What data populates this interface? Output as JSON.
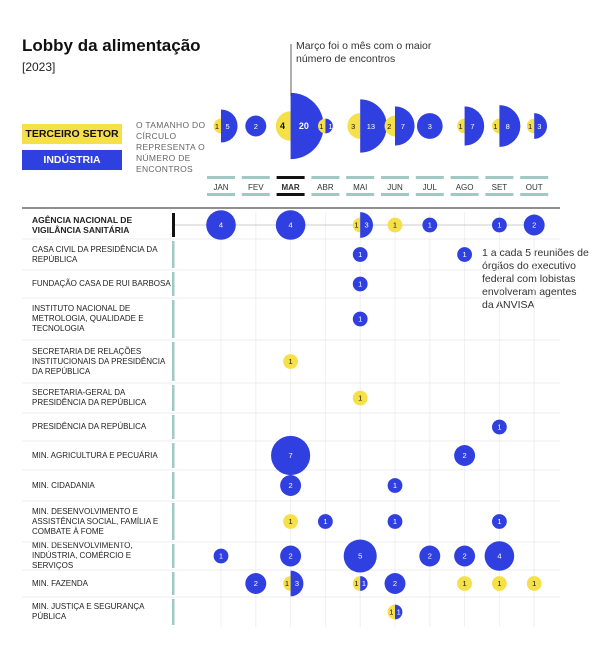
{
  "header": {
    "title": "Lobby da alimentação",
    "subtitle": "[2023]",
    "march_note": "Março foi o mês com o maior número de encontros",
    "anvisa_note": "1 a cada 5 reuniões de órgãos do executivo federal com lobistas envolveram agentes da ANVISA"
  },
  "legend": {
    "terceiro_setor": "TERCEIRO SETOR",
    "industria": "INDÚSTRIA",
    "size_note": "O TAMANHO DO CÍRCULO REPRESENTA O NÚMERO DE ENCONTROS"
  },
  "colors": {
    "industria": "#2f3fe0",
    "terceiro": "#f5e04a",
    "highlight_line": "#111111",
    "row_line": "#9fc9c2"
  },
  "chart_data": {
    "type": "bubble-matrix",
    "title": "Lobby da alimentação",
    "subtitle": "[2023]",
    "months": [
      "JAN",
      "FEV",
      "MAR",
      "ABR",
      "MAI",
      "JUN",
      "JUL",
      "AGO",
      "SET",
      "OUT"
    ],
    "highlight_month": "MAR",
    "series": [
      {
        "name": "TERCEIRO SETOR"
      },
      {
        "name": "INDÚSTRIA"
      }
    ],
    "monthly_totals": [
      {
        "month": "JAN",
        "terceiro": 1,
        "industria": 5
      },
      {
        "month": "FEV",
        "terceiro": 0,
        "industria": 2
      },
      {
        "month": "MAR",
        "terceiro": 4,
        "industria": 20
      },
      {
        "month": "ABR",
        "terceiro": 1,
        "industria": 1
      },
      {
        "month": "MAI",
        "terceiro": 3,
        "industria": 13
      },
      {
        "month": "JUN",
        "terceiro": 2,
        "industria": 7
      },
      {
        "month": "JUL",
        "terceiro": 0,
        "industria": 3
      },
      {
        "month": "AGO",
        "terceiro": 1,
        "industria": 7
      },
      {
        "month": "SET",
        "terceiro": 1,
        "industria": 8
      },
      {
        "month": "OUT",
        "terceiro": 1,
        "industria": 3
      }
    ],
    "organs": [
      {
        "name": "AGÊNCIA NACIONAL DE VIGILÂNCIA SANITÁRIA",
        "highlight": true,
        "cells": [
          {
            "month": "JAN",
            "industria": 4
          },
          {
            "month": "MAR",
            "industria": 4
          },
          {
            "month": "MAI",
            "terceiro": 1,
            "industria": 3
          },
          {
            "month": "JUN",
            "terceiro": 1
          },
          {
            "month": "JUL",
            "industria": 1
          },
          {
            "month": "SET",
            "industria": 1
          },
          {
            "month": "OUT",
            "industria": 2
          }
        ]
      },
      {
        "name": "CASA CIVIL DA PRESIDÊNCIA DA REPÚBLICA",
        "cells": [
          {
            "month": "MAI",
            "industria": 1
          },
          {
            "month": "AGO",
            "industria": 1
          }
        ]
      },
      {
        "name": "FUNDAÇÃO CASA DE RUI BARBOSA",
        "cells": [
          {
            "month": "MAI",
            "industria": 1
          }
        ]
      },
      {
        "name": "INSTITUTO NACIONAL DE METROLOGIA, QUALIDADE E TECNOLOGIA",
        "cells": [
          {
            "month": "MAI",
            "industria": 1
          }
        ]
      },
      {
        "name": "SECRETARIA DE RELAÇÕES INSTITUCIONAIS DA PRESIDÊNCIA DA REPÚBLICA",
        "cells": [
          {
            "month": "MAR",
            "terceiro": 1
          }
        ]
      },
      {
        "name": "SECRETARIA-GERAL DA PRESIDÊNCIA DA REPÚBLICA",
        "cells": [
          {
            "month": "MAI",
            "terceiro": 1
          }
        ]
      },
      {
        "name": "PRESIDÊNCIA DA REPÚBLICA",
        "cells": [
          {
            "month": "SET",
            "industria": 1
          }
        ]
      },
      {
        "name": "MIN. AGRICULTURA E PECUÁRIA",
        "cells": [
          {
            "month": "MAR",
            "industria": 7
          },
          {
            "month": "AGO",
            "industria": 2
          }
        ]
      },
      {
        "name": "MIN. CIDADANIA",
        "cells": [
          {
            "month": "MAR",
            "industria": 2
          },
          {
            "month": "JUN",
            "industria": 1
          }
        ]
      },
      {
        "name": "MIN. DESENVOLVIMENTO E ASSISTÊNCIA SOCIAL, FAMÍLIA E COMBATE À FOME",
        "cells": [
          {
            "month": "MAR",
            "terceiro": 1
          },
          {
            "month": "ABR",
            "industria": 1
          },
          {
            "month": "JUN",
            "industria": 1
          },
          {
            "month": "SET",
            "industria": 1
          }
        ]
      },
      {
        "name": "MIN. DESENVOLVIMENTO, INDÚSTRIA, COMÉRCIO E SERVIÇOS",
        "cells": [
          {
            "month": "JAN",
            "industria": 1
          },
          {
            "month": "MAR",
            "industria": 2
          },
          {
            "month": "MAI",
            "industria": 5
          },
          {
            "month": "JUL",
            "industria": 2
          },
          {
            "month": "AGO",
            "industria": 2
          },
          {
            "month": "SET",
            "industria": 4
          }
        ]
      },
      {
        "name": "MIN. FAZENDA",
        "cells": [
          {
            "month": "FEV",
            "industria": 2
          },
          {
            "month": "MAR",
            "terceiro": 1,
            "industria": 3
          },
          {
            "month": "MAI",
            "terceiro": 1,
            "industria": 1
          },
          {
            "month": "JUN",
            "industria": 2
          },
          {
            "month": "AGO",
            "terceiro": 1
          },
          {
            "month": "SET",
            "terceiro": 1
          },
          {
            "month": "OUT",
            "terceiro": 1
          }
        ]
      },
      {
        "name": "MIN. JUSTIÇA E SEGURANÇA PÚBLICA",
        "cells": [
          {
            "month": "JUN",
            "terceiro": 1,
            "industria": 1
          }
        ]
      }
    ]
  }
}
